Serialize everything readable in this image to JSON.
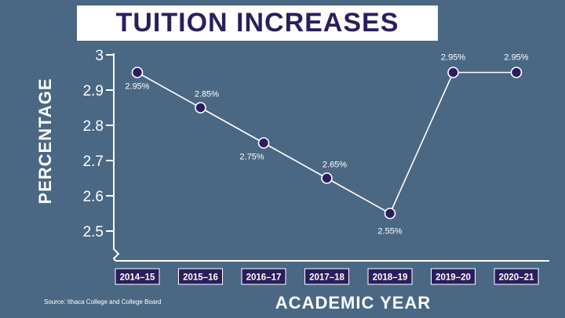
{
  "chart_data": {
    "type": "line",
    "title": "TUITION INCREASES",
    "xlabel": "ACADEMIC YEAR",
    "ylabel": "PERCENTAGE",
    "categories": [
      "2014–15",
      "2015–16",
      "2016–17",
      "2017–18",
      "2018–19",
      "2019–20",
      "2020–21"
    ],
    "values": [
      2.95,
      2.85,
      2.75,
      2.65,
      2.55,
      2.95,
      2.95
    ],
    "data_labels": [
      "2.95%",
      "2.85%",
      "2.75%",
      "2.65%",
      "2.55%",
      "2.95%",
      "2.95%"
    ],
    "y_ticks": [
      "3",
      "2.9",
      "2.8",
      "2.7",
      "2.6",
      "2.5"
    ],
    "ylim": [
      2.5,
      3
    ],
    "grid": false,
    "source": "Source: Ithaca College and College Board",
    "colors": {
      "background": "#4a6884",
      "line": "#ffffff",
      "marker": "#2a1f5c",
      "category_box": "#2a1f5c",
      "title": "#2a1f5c"
    }
  }
}
